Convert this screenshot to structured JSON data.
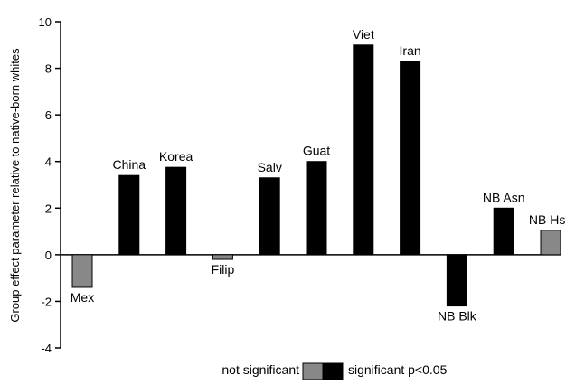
{
  "chart_data": {
    "type": "bar",
    "ylabel": "Group effect parameter relative to native-born whites",
    "ylim": [
      -4,
      10
    ],
    "yticks": [
      -4,
      -2,
      0,
      2,
      4,
      6,
      8,
      10
    ],
    "grid": false,
    "legend_position": "bottom-center",
    "categories": [
      "Mex",
      "China",
      "Korea",
      "Filip",
      "Salv",
      "Guat",
      "Viet",
      "Iran",
      "NB Blk",
      "NB Asn",
      "NB Hsp"
    ],
    "values": [
      -1.4,
      3.4,
      3.75,
      -0.2,
      3.3,
      4.0,
      9.0,
      8.3,
      -2.2,
      2.0,
      1.05
    ],
    "significant": [
      false,
      true,
      true,
      false,
      true,
      true,
      true,
      true,
      true,
      true,
      false
    ],
    "legend": {
      "not_significant": "not significant",
      "significant": "significant p<0.05"
    },
    "colors": {
      "significant": "#000000",
      "not_significant": "#888888",
      "axis": "#000000"
    }
  }
}
